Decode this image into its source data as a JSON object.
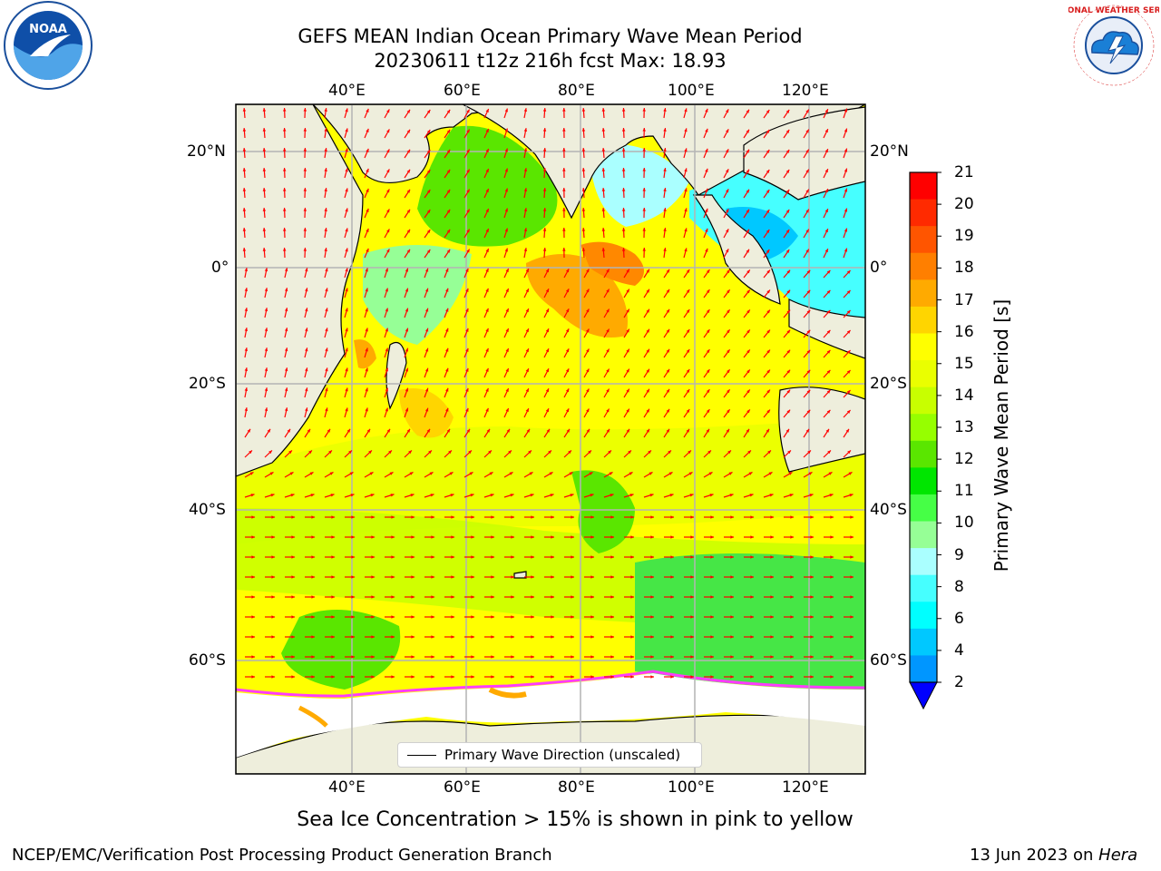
{
  "header": {
    "title_line1": "GEFS MEAN Indian Ocean Primary Wave Mean Period",
    "title_line2": "20230611 t12z 216h fcst   Max: 18.93"
  },
  "logos": {
    "left": "NOAA",
    "right": "NATIONAL WEATHER SERVICE"
  },
  "map": {
    "lon_labels": [
      "40°E",
      "60°E",
      "80°E",
      "100°E",
      "120°E"
    ],
    "lat_labels": [
      "20°N",
      "0°",
      "20°S",
      "40°S",
      "60°S"
    ],
    "legend_label": "Primary Wave Direction (unscaled)",
    "arrow_color": "#ff0000",
    "land_color": "#eeeedc",
    "ice_note": "Sea Ice Concentration > 15% is shown in pink to yellow"
  },
  "colorbar": {
    "label": "Primary Wave Mean Period [s]",
    "ticks": [
      "21",
      "20",
      "19",
      "18",
      "17",
      "16",
      "15",
      "14",
      "13",
      "12",
      "11",
      "10",
      "9",
      "8",
      "6",
      "4",
      "2"
    ],
    "colors": [
      "#ff0000",
      "#ff2a00",
      "#ff5500",
      "#ff7f00",
      "#ffaa00",
      "#ffd500",
      "#ffff00",
      "#eaff00",
      "#c8ff00",
      "#96ff00",
      "#5ae600",
      "#00e600",
      "#46ff46",
      "#96ff96",
      "#aaffff",
      "#46ffff",
      "#00ffff",
      "#00c8ff",
      "#0096ff"
    ],
    "extend_color": "#0000ff"
  },
  "footer": {
    "left": "NCEP/EMC/Verification Post Processing Product Generation Branch",
    "right_prefix": "13 Jun 2023 on ",
    "right_machine": "Hera"
  }
}
